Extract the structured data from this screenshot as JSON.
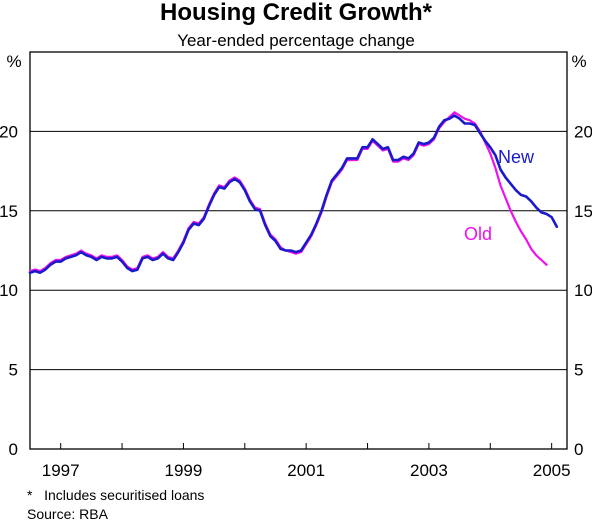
{
  "chart_data": {
    "type": "line",
    "title": "Housing Credit Growth*",
    "subtitle": "Year-ended percentage change",
    "ylabel_left": "%",
    "ylabel_right": "%",
    "ylim": [
      0,
      25
    ],
    "xlim": [
      1996.5,
      2005.25
    ],
    "y_ticks": [
      0,
      5,
      10,
      15,
      20
    ],
    "x_ticks": [
      1997,
      1998,
      1999,
      2000,
      2001,
      2002,
      2003,
      2004,
      2005
    ],
    "x_tick_labels": [
      "1997",
      "1999",
      "2001",
      "2003",
      "2005"
    ],
    "x_tick_label_values": [
      1997,
      1999,
      2001,
      2003,
      2005
    ],
    "grid": "horizontal",
    "colors": {
      "new": "#1a1acc",
      "old": "#ee11ee"
    },
    "series": [
      {
        "name": "New",
        "values": [
          [
            1996.5,
            11.1
          ],
          [
            1996.583,
            11.2
          ],
          [
            1996.667,
            11.1
          ],
          [
            1996.75,
            11.3
          ],
          [
            1996.833,
            11.6
          ],
          [
            1996.917,
            11.8
          ],
          [
            1997.0,
            11.8
          ],
          [
            1997.083,
            12.0
          ],
          [
            1997.167,
            12.1
          ],
          [
            1997.25,
            12.2
          ],
          [
            1997.333,
            12.4
          ],
          [
            1997.417,
            12.2
          ],
          [
            1997.5,
            12.1
          ],
          [
            1997.583,
            11.9
          ],
          [
            1997.667,
            12.1
          ],
          [
            1997.75,
            12.0
          ],
          [
            1997.833,
            12.0
          ],
          [
            1997.917,
            12.1
          ],
          [
            1998.0,
            11.8
          ],
          [
            1998.083,
            11.4
          ],
          [
            1998.167,
            11.2
          ],
          [
            1998.25,
            11.3
          ],
          [
            1998.333,
            12.0
          ],
          [
            1998.417,
            12.1
          ],
          [
            1998.5,
            11.9
          ],
          [
            1998.583,
            12.0
          ],
          [
            1998.667,
            12.3
          ],
          [
            1998.75,
            12.0
          ],
          [
            1998.833,
            11.9
          ],
          [
            1998.917,
            12.4
          ],
          [
            1999.0,
            13.0
          ],
          [
            1999.083,
            13.8
          ],
          [
            1999.167,
            14.2
          ],
          [
            1999.25,
            14.1
          ],
          [
            1999.333,
            14.5
          ],
          [
            1999.417,
            15.3
          ],
          [
            1999.5,
            16.0
          ],
          [
            1999.583,
            16.5
          ],
          [
            1999.667,
            16.4
          ],
          [
            1999.75,
            16.8
          ],
          [
            1999.833,
            17.0
          ],
          [
            1999.917,
            16.8
          ],
          [
            2000.0,
            16.3
          ],
          [
            2000.083,
            15.6
          ],
          [
            2000.167,
            15.1
          ],
          [
            2000.25,
            15.0
          ],
          [
            2000.333,
            14.1
          ],
          [
            2000.417,
            13.4
          ],
          [
            2000.5,
            13.1
          ],
          [
            2000.583,
            12.6
          ],
          [
            2000.667,
            12.5
          ],
          [
            2000.75,
            12.5
          ],
          [
            2000.833,
            12.4
          ],
          [
            2000.917,
            12.5
          ],
          [
            2001.0,
            13.0
          ],
          [
            2001.083,
            13.5
          ],
          [
            2001.167,
            14.2
          ],
          [
            2001.25,
            15.0
          ],
          [
            2001.333,
            16.0
          ],
          [
            2001.417,
            16.9
          ],
          [
            2001.5,
            17.3
          ],
          [
            2001.583,
            17.7
          ],
          [
            2001.667,
            18.3
          ],
          [
            2001.75,
            18.3
          ],
          [
            2001.833,
            18.3
          ],
          [
            2001.917,
            19.0
          ],
          [
            2002.0,
            19.0
          ],
          [
            2002.083,
            19.5
          ],
          [
            2002.167,
            19.2
          ],
          [
            2002.25,
            18.9
          ],
          [
            2002.333,
            19.0
          ],
          [
            2002.417,
            18.2
          ],
          [
            2002.5,
            18.2
          ],
          [
            2002.583,
            18.4
          ],
          [
            2002.667,
            18.3
          ],
          [
            2002.75,
            18.6
          ],
          [
            2002.833,
            19.3
          ],
          [
            2002.917,
            19.2
          ],
          [
            2003.0,
            19.3
          ],
          [
            2003.083,
            19.6
          ],
          [
            2003.167,
            20.3
          ],
          [
            2003.25,
            20.7
          ],
          [
            2003.333,
            20.8
          ],
          [
            2003.417,
            21.0
          ],
          [
            2003.5,
            20.8
          ],
          [
            2003.583,
            20.5
          ],
          [
            2003.667,
            20.5
          ],
          [
            2003.75,
            20.4
          ],
          [
            2003.833,
            19.9
          ],
          [
            2003.917,
            19.4
          ],
          [
            2004.0,
            19.0
          ],
          [
            2004.083,
            18.5
          ],
          [
            2004.167,
            17.6
          ],
          [
            2004.25,
            17.1
          ],
          [
            2004.333,
            16.7
          ],
          [
            2004.417,
            16.3
          ],
          [
            2004.5,
            16.0
          ],
          [
            2004.583,
            15.9
          ],
          [
            2004.667,
            15.6
          ],
          [
            2004.75,
            15.2
          ],
          [
            2004.833,
            14.9
          ],
          [
            2004.917,
            14.8
          ],
          [
            2005.0,
            14.6
          ],
          [
            2005.083,
            14.0
          ]
        ]
      },
      {
        "name": "Old",
        "values": [
          [
            1996.5,
            11.2
          ],
          [
            1996.583,
            11.3
          ],
          [
            1996.667,
            11.2
          ],
          [
            1996.75,
            11.4
          ],
          [
            1996.833,
            11.7
          ],
          [
            1996.917,
            11.9
          ],
          [
            1997.0,
            11.9
          ],
          [
            1997.083,
            12.1
          ],
          [
            1997.167,
            12.2
          ],
          [
            1997.25,
            12.3
          ],
          [
            1997.333,
            12.5
          ],
          [
            1997.417,
            12.3
          ],
          [
            1997.5,
            12.2
          ],
          [
            1997.583,
            12.0
          ],
          [
            1997.667,
            12.2
          ],
          [
            1997.75,
            12.1
          ],
          [
            1997.833,
            12.1
          ],
          [
            1997.917,
            12.2
          ],
          [
            1998.0,
            11.9
          ],
          [
            1998.083,
            11.5
          ],
          [
            1998.167,
            11.3
          ],
          [
            1998.25,
            11.4
          ],
          [
            1998.333,
            12.1
          ],
          [
            1998.417,
            12.2
          ],
          [
            1998.5,
            12.0
          ],
          [
            1998.583,
            12.1
          ],
          [
            1998.667,
            12.4
          ],
          [
            1998.75,
            12.1
          ],
          [
            1998.833,
            12.0
          ],
          [
            1998.917,
            12.5
          ],
          [
            1999.0,
            13.1
          ],
          [
            1999.083,
            13.9
          ],
          [
            1999.167,
            14.3
          ],
          [
            1999.25,
            14.2
          ],
          [
            1999.333,
            14.6
          ],
          [
            1999.417,
            15.4
          ],
          [
            1999.5,
            16.1
          ],
          [
            1999.583,
            16.6
          ],
          [
            1999.667,
            16.5
          ],
          [
            1999.75,
            16.9
          ],
          [
            1999.833,
            17.1
          ],
          [
            1999.917,
            16.9
          ],
          [
            2000.0,
            16.4
          ],
          [
            2000.083,
            15.7
          ],
          [
            2000.167,
            15.2
          ],
          [
            2000.25,
            15.1
          ],
          [
            2000.333,
            14.2
          ],
          [
            2000.417,
            13.5
          ],
          [
            2000.5,
            13.2
          ],
          [
            2000.583,
            12.7
          ],
          [
            2000.667,
            12.5
          ],
          [
            2000.75,
            12.4
          ],
          [
            2000.833,
            12.3
          ],
          [
            2000.917,
            12.4
          ],
          [
            2001.0,
            12.9
          ],
          [
            2001.083,
            13.4
          ],
          [
            2001.167,
            14.1
          ],
          [
            2001.25,
            14.9
          ],
          [
            2001.333,
            15.9
          ],
          [
            2001.417,
            16.8
          ],
          [
            2001.5,
            17.2
          ],
          [
            2001.583,
            17.6
          ],
          [
            2001.667,
            18.2
          ],
          [
            2001.75,
            18.2
          ],
          [
            2001.833,
            18.2
          ],
          [
            2001.917,
            18.9
          ],
          [
            2002.0,
            18.9
          ],
          [
            2002.083,
            19.4
          ],
          [
            2002.167,
            19.1
          ],
          [
            2002.25,
            18.8
          ],
          [
            2002.333,
            18.9
          ],
          [
            2002.417,
            18.1
          ],
          [
            2002.5,
            18.1
          ],
          [
            2002.583,
            18.3
          ],
          [
            2002.667,
            18.2
          ],
          [
            2002.75,
            18.5
          ],
          [
            2002.833,
            19.2
          ],
          [
            2002.917,
            19.1
          ],
          [
            2003.0,
            19.2
          ],
          [
            2003.083,
            19.5
          ],
          [
            2003.167,
            20.2
          ],
          [
            2003.25,
            20.6
          ],
          [
            2003.333,
            20.9
          ],
          [
            2003.417,
            21.2
          ],
          [
            2003.5,
            21.0
          ],
          [
            2003.583,
            20.8
          ],
          [
            2003.667,
            20.7
          ],
          [
            2003.75,
            20.5
          ],
          [
            2003.833,
            20.0
          ],
          [
            2003.917,
            19.3
          ],
          [
            2004.0,
            18.6
          ],
          [
            2004.083,
            17.7
          ],
          [
            2004.167,
            16.6
          ],
          [
            2004.25,
            15.8
          ],
          [
            2004.333,
            15.0
          ],
          [
            2004.417,
            14.3
          ],
          [
            2004.5,
            13.7
          ],
          [
            2004.583,
            13.2
          ],
          [
            2004.667,
            12.6
          ],
          [
            2004.75,
            12.2
          ],
          [
            2004.833,
            11.9
          ],
          [
            2004.917,
            11.6
          ]
        ]
      }
    ],
    "annotations": {
      "new_label": "New",
      "old_label": "Old"
    }
  },
  "footnotes": {
    "note": "*   Includes securitised loans",
    "source": "Source: RBA"
  }
}
